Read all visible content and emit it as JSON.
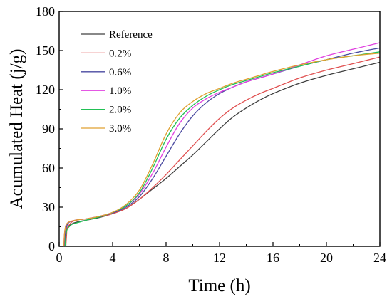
{
  "chart_data": {
    "type": "line",
    "xlabel": "Time (h)",
    "ylabel": "Acumulated Heat (j/g)",
    "xlim": [
      0,
      24
    ],
    "ylim": [
      0,
      180
    ],
    "xticks": [
      0,
      4,
      8,
      12,
      16,
      20,
      24
    ],
    "yticks": [
      0,
      30,
      60,
      90,
      120,
      150,
      180
    ],
    "grid": false,
    "legend_position": "top-left",
    "series": [
      {
        "name": "Reference",
        "color": "#404040",
        "x": [
          0.45,
          0.5,
          0.6,
          0.8,
          1,
          1.5,
          2,
          3,
          4,
          5,
          6,
          7,
          8,
          9,
          10,
          11,
          12,
          13,
          14,
          15,
          16,
          18,
          20,
          22,
          24
        ],
        "y": [
          0,
          8,
          14,
          16,
          17.5,
          19,
          20,
          22,
          25,
          29,
          36,
          44,
          52,
          61,
          70,
          80,
          90,
          99,
          106,
          112,
          117,
          125,
          131,
          136,
          141
        ]
      },
      {
        "name": "0.2%",
        "color": "#e05050",
        "x": [
          0.5,
          0.55,
          0.6,
          0.8,
          1,
          1.5,
          2,
          3,
          4,
          5,
          6,
          7,
          8,
          9,
          10,
          11,
          12,
          13,
          14,
          15,
          16,
          18,
          20,
          22,
          24
        ],
        "y": [
          0,
          8,
          14,
          17,
          19,
          20.5,
          21,
          22.5,
          25,
          29,
          36,
          45,
          55,
          66,
          77,
          88,
          98,
          106,
          112,
          117,
          121,
          129,
          135,
          140,
          145
        ]
      },
      {
        "name": "0.6%",
        "color": "#4a4aa0",
        "x": [
          0.4,
          0.45,
          0.55,
          0.7,
          1,
          1.5,
          2,
          3,
          4,
          5,
          6,
          7,
          8,
          9,
          10,
          11,
          12,
          13,
          14,
          15,
          16,
          18,
          20,
          22,
          24
        ],
        "y": [
          0,
          9,
          15,
          18,
          19.5,
          20.5,
          21,
          23,
          25.5,
          30,
          38,
          52,
          69,
          86,
          100,
          110,
          117,
          122,
          126,
          129,
          132,
          138,
          143,
          148,
          152
        ]
      },
      {
        "name": "1.0%",
        "color": "#e040e0",
        "x": [
          0.35,
          0.4,
          0.5,
          0.7,
          1,
          1.5,
          2,
          3,
          4,
          5,
          6,
          7,
          8,
          9,
          10,
          11,
          12,
          13,
          14,
          15,
          16,
          18,
          20,
          22,
          24
        ],
        "y": [
          0,
          10,
          16,
          18.5,
          19.5,
          20.5,
          21,
          23,
          26,
          31,
          40,
          56,
          76,
          94,
          106,
          113,
          118,
          122,
          126,
          129,
          132,
          139,
          146,
          151,
          156
        ]
      },
      {
        "name": "2.0%",
        "color": "#22c055",
        "x": [
          0.45,
          0.5,
          0.6,
          0.8,
          1,
          1.5,
          2,
          3,
          4,
          5,
          6,
          7,
          8,
          9,
          10,
          11,
          12,
          13,
          14,
          15,
          16,
          18,
          20,
          22,
          24
        ],
        "y": [
          0,
          8,
          13,
          15.5,
          17,
          18.5,
          20,
          22.5,
          26,
          31,
          41,
          60,
          82,
          98,
          108,
          115,
          120,
          124,
          127,
          130,
          133,
          138,
          143,
          146,
          149
        ]
      },
      {
        "name": "3.0%",
        "color": "#e0a030",
        "x": [
          0.35,
          0.4,
          0.5,
          0.7,
          1,
          1.5,
          2,
          3,
          4,
          5,
          6,
          7,
          8,
          9,
          10,
          11,
          12,
          13,
          14,
          15,
          16,
          18,
          20,
          22,
          24
        ],
        "y": [
          0,
          10,
          16,
          18.5,
          19.5,
          20.5,
          21,
          23,
          26,
          32,
          43,
          63,
          86,
          102,
          111,
          117,
          121,
          125,
          128,
          131,
          134,
          139,
          143,
          146,
          148
        ]
      }
    ]
  }
}
